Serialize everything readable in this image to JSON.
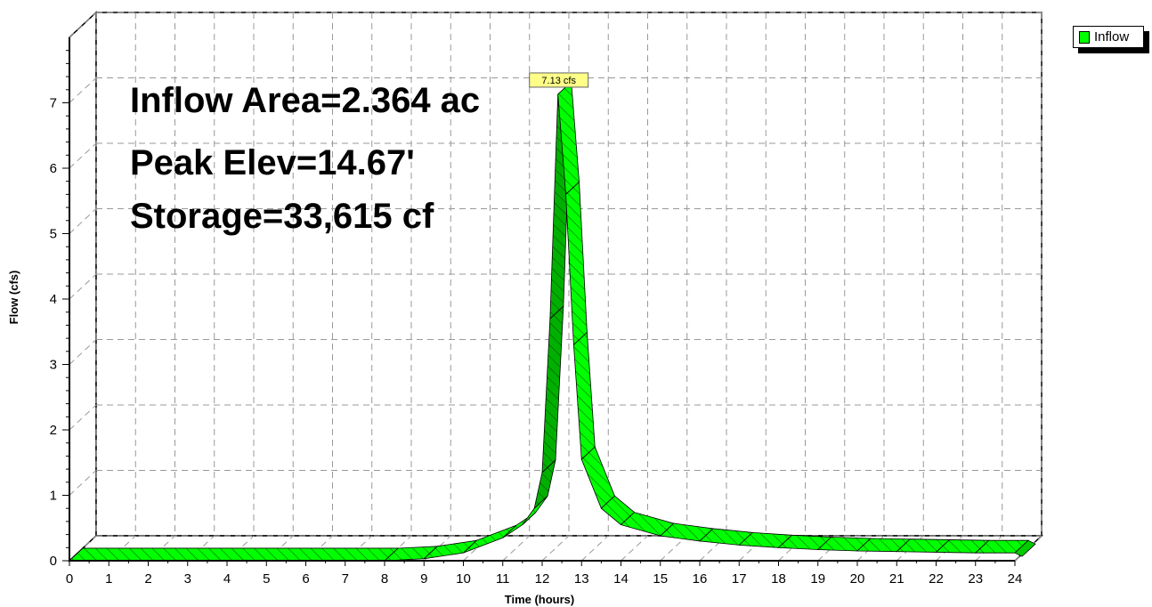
{
  "chart_data": {
    "type": "area",
    "title": "",
    "xlabel": "Time  (hours)",
    "ylabel": "Flow  (cfs)",
    "xlim": [
      0,
      24
    ],
    "ylim": [
      0,
      8
    ],
    "x_ticks": [
      0,
      1,
      2,
      3,
      4,
      5,
      6,
      7,
      8,
      9,
      10,
      11,
      12,
      13,
      14,
      15,
      16,
      17,
      18,
      19,
      20,
      21,
      22,
      23,
      24
    ],
    "y_ticks": [
      0,
      1,
      2,
      3,
      4,
      5,
      6,
      7
    ],
    "grid": true,
    "legend_position": "top-right",
    "series": [
      {
        "name": "Inflow",
        "color": "#00ff00",
        "x": [
          0,
          8,
          9,
          10,
          11,
          11.5,
          11.8,
          12,
          12.2,
          12.4,
          12.6,
          12.8,
          13,
          13.5,
          14,
          15,
          16,
          17,
          18,
          19,
          20,
          21,
          22,
          23,
          24
        ],
        "y": [
          0,
          0,
          0.03,
          0.12,
          0.35,
          0.55,
          0.8,
          1.35,
          3.7,
          7.13,
          5.6,
          3.3,
          1.55,
          0.8,
          0.55,
          0.38,
          0.3,
          0.24,
          0.2,
          0.17,
          0.15,
          0.14,
          0.13,
          0.12,
          0.12
        ]
      }
    ],
    "annotations": [
      "Inflow Area=2.364 ac",
      "Peak Elev=14.67'",
      "Storage=33,615 cf"
    ],
    "peak_label": "7.13 cfs",
    "peak_x": 12.4,
    "peak_y": 7.13
  },
  "legend": {
    "label": "Inflow",
    "color": "#00ff00"
  }
}
